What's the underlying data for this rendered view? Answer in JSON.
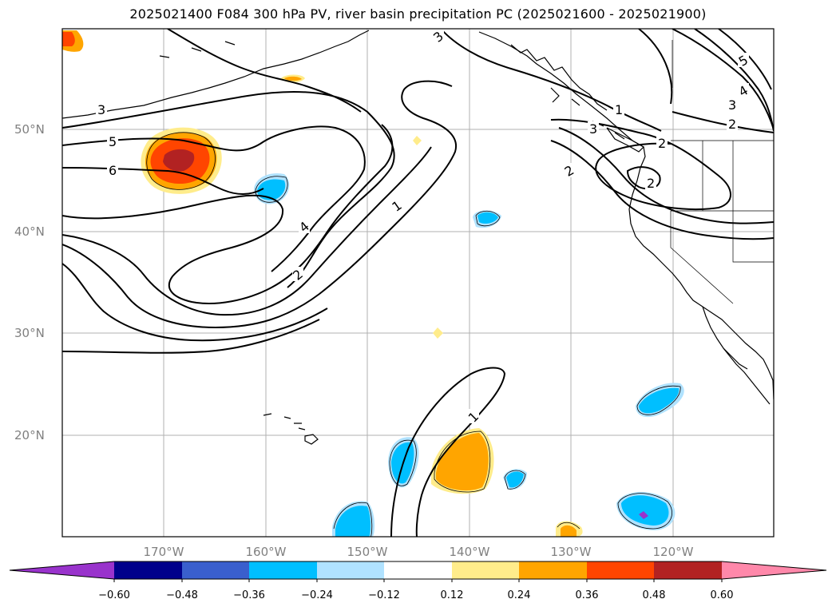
{
  "title": "2025021400 F084 300 hPa PV, river basin precipitation PC (2025021600 - 2025021900)",
  "latitude_labels": [
    "50°N",
    "40°N",
    "30°N",
    "20°N"
  ],
  "longitude_labels": [
    "170°W",
    "160°W",
    "150°W",
    "140°W",
    "130°W",
    "120°W"
  ],
  "pv_contour_labels": [
    "3",
    "5",
    "6",
    "4",
    "2",
    "1",
    "3",
    "1",
    "2",
    "5",
    "4",
    "3",
    "2",
    "2",
    "1",
    "2",
    "3"
  ],
  "colorbar": {
    "tick_labels": [
      "−0.60",
      "−0.48",
      "−0.36",
      "−0.24",
      "−0.12",
      "0.12",
      "0.24",
      "0.36",
      "0.48",
      "0.60"
    ],
    "colors": [
      "#9933cc",
      "#00008b",
      "#3a5fcd",
      "#00bfff",
      "#b0e2ff",
      "#ffffff",
      "#ffec8b",
      "#ffa500",
      "#ff4500",
      "#b22222",
      "#ff88aa"
    ]
  }
}
